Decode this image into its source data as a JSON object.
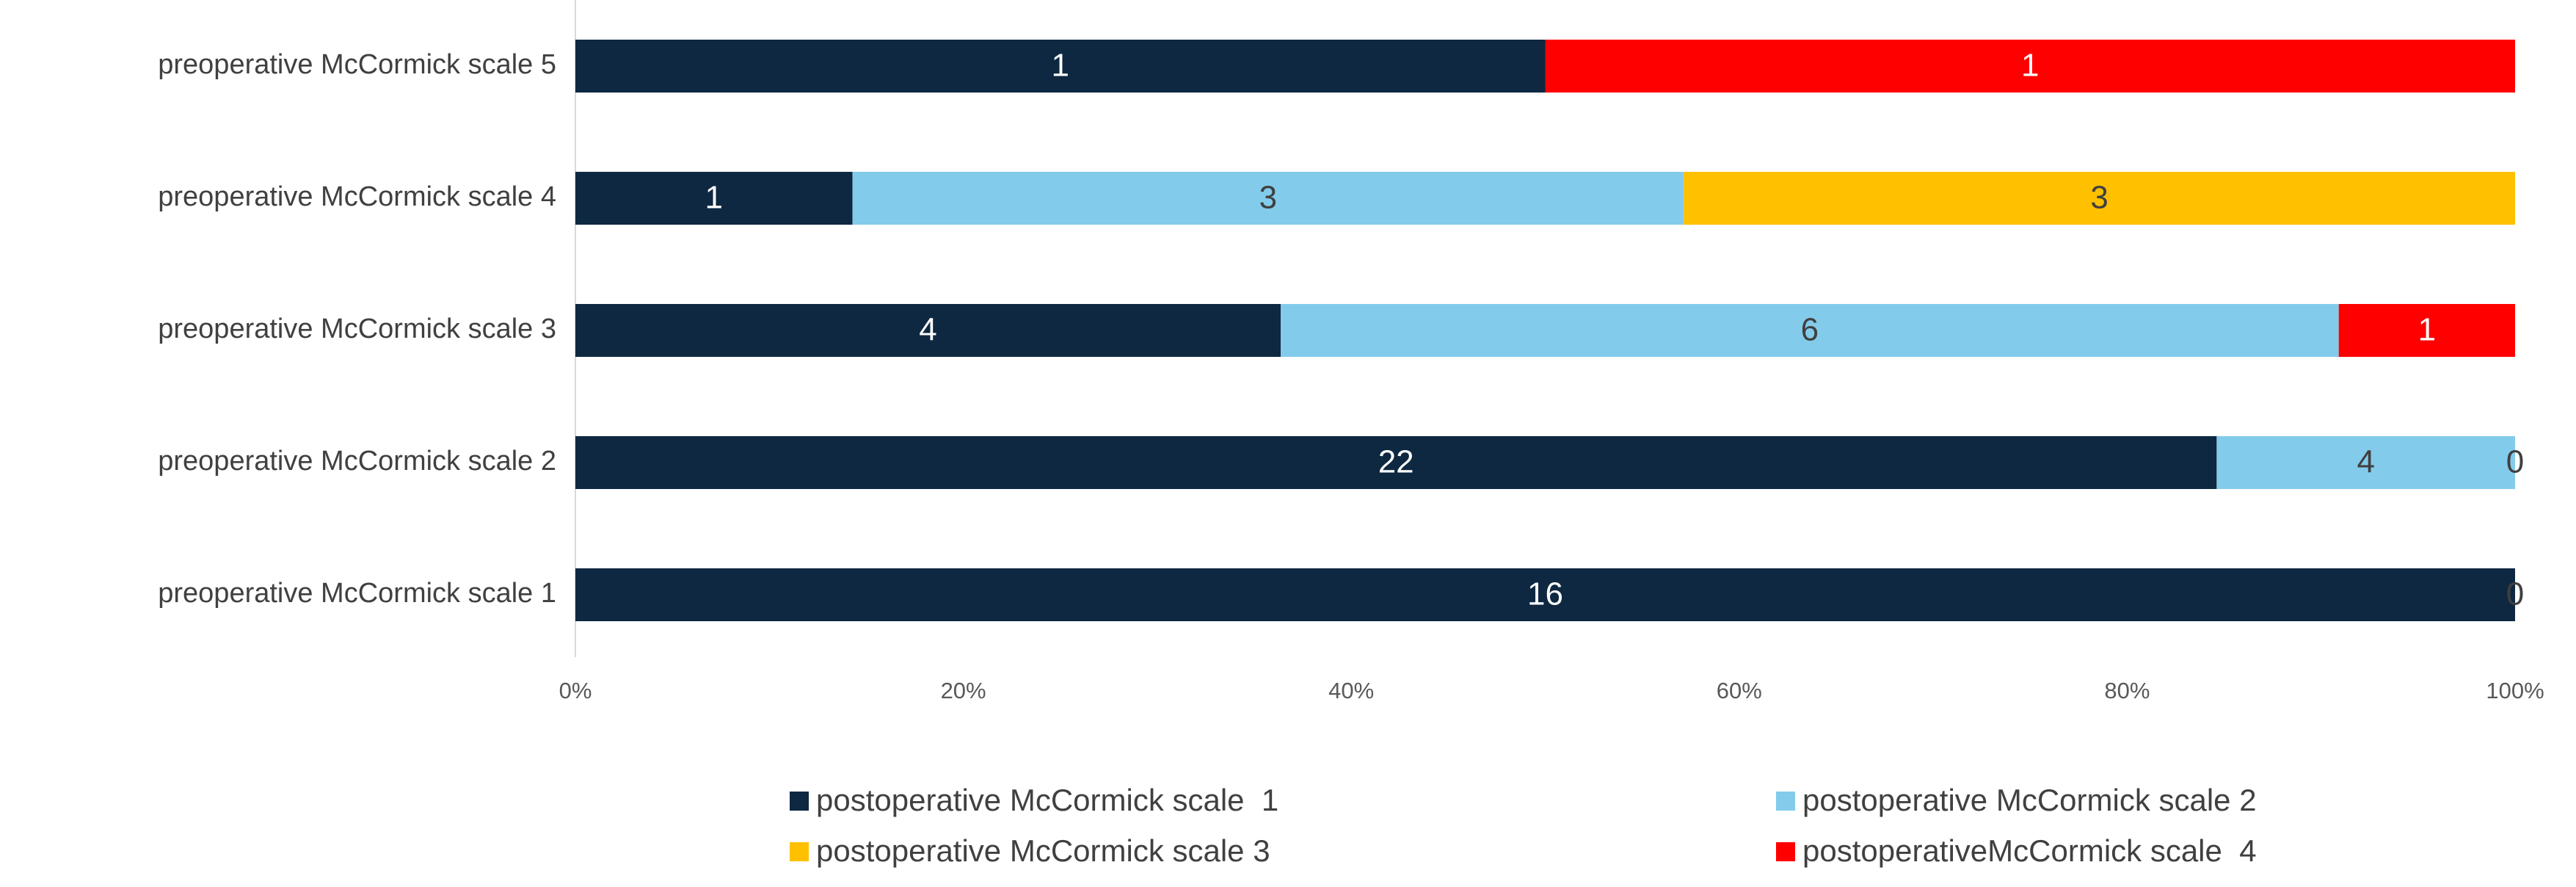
{
  "chart_data": {
    "type": "bar",
    "orientation": "horizontal",
    "stacking": "percent",
    "categories": [
      "preoperative McCormick scale 1",
      "preoperative McCormick scale 2",
      "preoperative McCormick scale 3",
      "preoperative McCormick scale 4",
      "preoperative McCormick scale 5"
    ],
    "series": [
      {
        "name": "postoperative McCormick scale  1",
        "color": "#0e2841",
        "values": [
          16,
          22,
          4,
          1,
          1
        ]
      },
      {
        "name": "postoperative McCormick scale 2",
        "color": "#83cbeb",
        "values": [
          0,
          4,
          6,
          3,
          null
        ]
      },
      {
        "name": "postoperative McCormick scale 3",
        "color": "#ffc000",
        "values": [
          null,
          0,
          null,
          3,
          null
        ]
      },
      {
        "name": "postoperativeMcCormick scale  4",
        "color": "#ff0000",
        "values": [
          null,
          null,
          1,
          null,
          1
        ]
      }
    ],
    "xlim": [
      0,
      100
    ],
    "xticks": [
      {
        "value": 0,
        "label": "0%"
      },
      {
        "value": 20,
        "label": "20%"
      },
      {
        "value": 40,
        "label": "40%"
      },
      {
        "value": 60,
        "label": "60%"
      },
      {
        "value": 80,
        "label": "80%"
      },
      {
        "value": 100,
        "label": "100%"
      }
    ],
    "legend": "bottom"
  }
}
